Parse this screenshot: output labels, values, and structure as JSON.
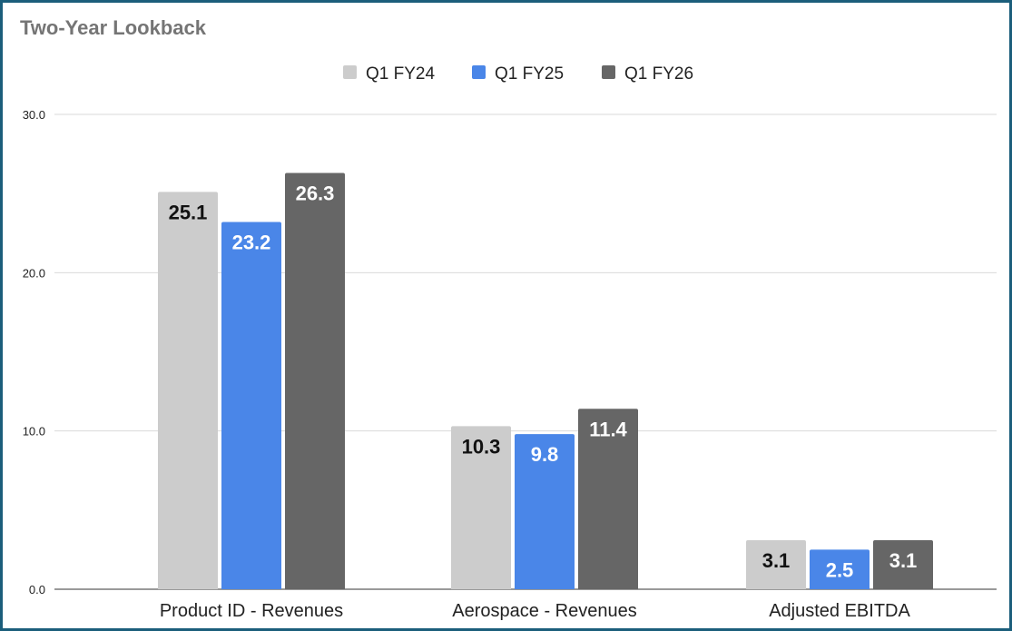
{
  "chart_data": {
    "type": "bar",
    "title": "Two-Year Lookback",
    "categories": [
      "Product ID - Revenues",
      "Aerospace - Revenues",
      "Adjusted EBITDA"
    ],
    "series": [
      {
        "name": "Q1 FY24",
        "color": "#cccccc",
        "label_color": "#111111",
        "values": [
          25.1,
          10.3,
          3.1
        ]
      },
      {
        "name": "Q1 FY25",
        "color": "#4a86e8",
        "label_color": "#ffffff",
        "values": [
          23.2,
          9.8,
          2.5
        ]
      },
      {
        "name": "Q1 FY26",
        "color": "#666666",
        "label_color": "#ffffff",
        "values": [
          26.3,
          11.4,
          3.1
        ]
      }
    ],
    "yticks": [
      "0.0",
      "10.0",
      "20.0",
      "30.0"
    ],
    "ylim": [
      0,
      30
    ],
    "xlabel": "",
    "ylabel": "",
    "grid": true,
    "legend": "top-center"
  }
}
